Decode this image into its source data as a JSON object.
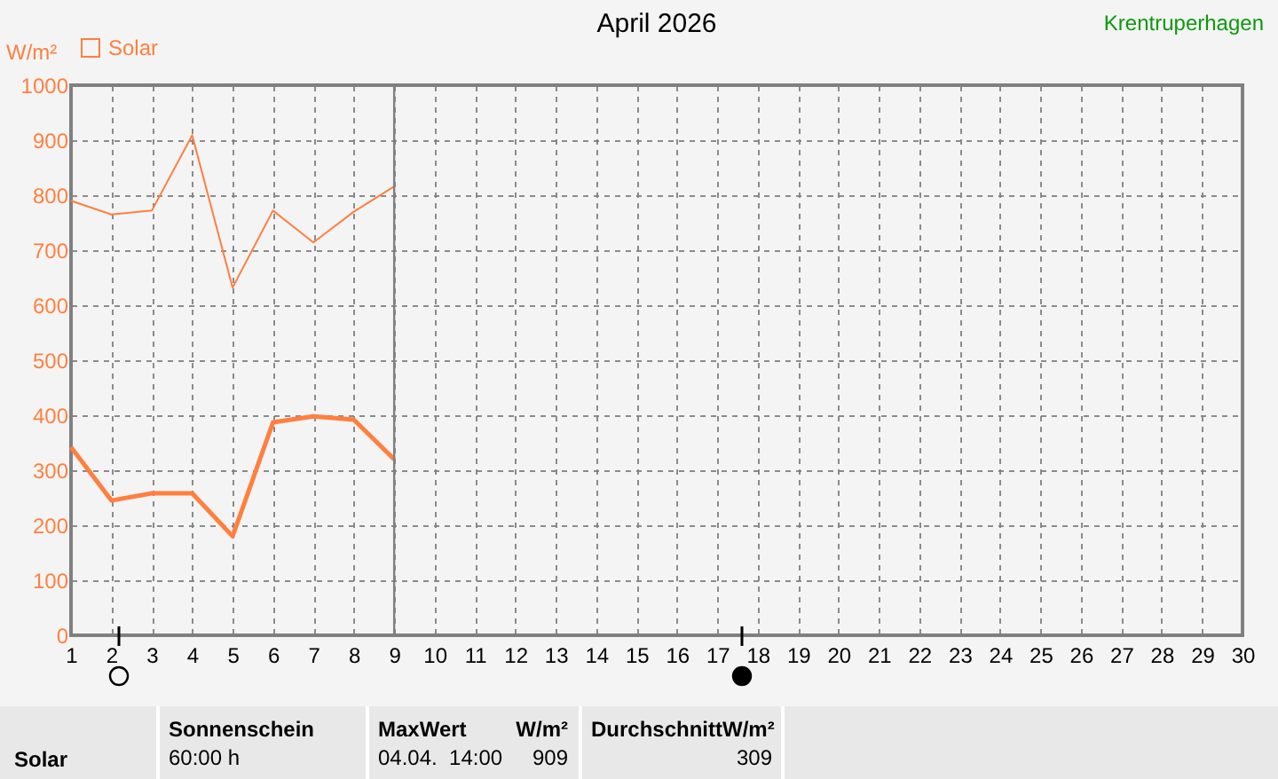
{
  "chart_data": {
    "type": "line",
    "title": "April 2026",
    "ylabel": "W/m²",
    "x": [
      1,
      2,
      3,
      4,
      5,
      6,
      7,
      8,
      9
    ],
    "series": [
      {
        "color": "#ff7f3f",
        "values": [
          790,
          765,
          772,
          909,
          632,
          772,
          714,
          770,
          816
        ]
      },
      {
        "name": "Solar",
        "color": "#ff7f3f",
        "values": [
          342,
          245,
          258,
          258,
          180,
          387,
          398,
          392,
          320
        ]
      }
    ],
    "xlim": [
      1,
      30
    ],
    "xticks": [
      1,
      2,
      3,
      4,
      5,
      6,
      7,
      8,
      9,
      10,
      11,
      12,
      13,
      14,
      15,
      16,
      17,
      18,
      19,
      20,
      21,
      22,
      23,
      24,
      25,
      26,
      27,
      28,
      29,
      30
    ],
    "ylim": [
      0,
      1000
    ],
    "yticks": [
      0,
      100,
      200,
      300,
      400,
      500,
      600,
      700,
      800,
      900,
      1000
    ],
    "grid": true,
    "legend": "top left",
    "marker": "none",
    "line_style": "solid",
    "ref_lines": [
      {
        "axis": "x",
        "value": 9,
        "color": "#808080"
      }
    ],
    "annotations": [
      "Krentruperhagen",
      "Solar",
      "Sonnenschein",
      "60:00 h",
      "MaxWert",
      "W/m²",
      "04.04.  14:00",
      "909",
      "DurchschnittW/m²",
      "309"
    ]
  }
}
